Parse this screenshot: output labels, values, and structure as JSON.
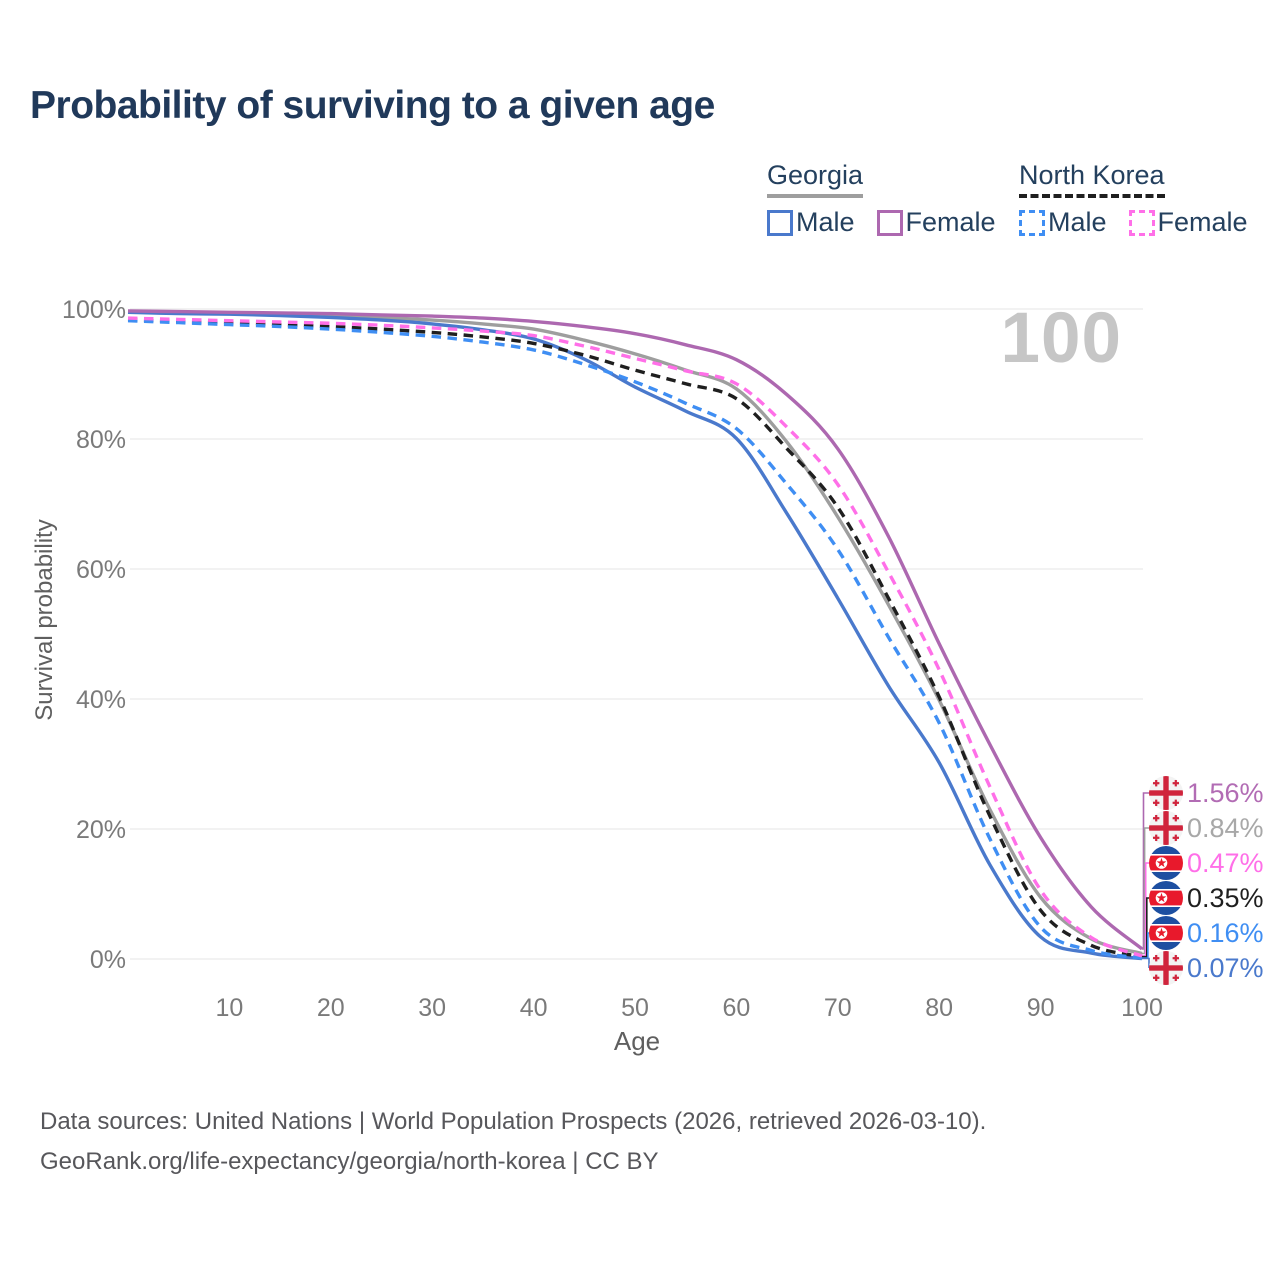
{
  "title": "Probability of surviving to a given age",
  "watermark": "100",
  "legend": {
    "groups": [
      {
        "label": "Georgia",
        "line_color": "#9e9e9e",
        "line_style": "solid",
        "items": [
          {
            "label": "Male",
            "color": "#4a79cc",
            "style": "solid"
          },
          {
            "label": "Female",
            "color": "#ad68b0",
            "style": "solid"
          }
        ]
      },
      {
        "label": "North Korea",
        "line_color": "#1f1f1f",
        "line_style": "dashed",
        "items": [
          {
            "label": "Male",
            "color": "#3f8ef3",
            "style": "dashed"
          },
          {
            "label": "Female",
            "color": "#ff6fe8",
            "style": "dashed"
          }
        ]
      }
    ]
  },
  "y_axis": {
    "title": "Survival probability",
    "ticks": [
      "0%",
      "20%",
      "40%",
      "60%",
      "80%",
      "100%"
    ],
    "values": [
      0,
      20,
      40,
      60,
      80,
      100
    ]
  },
  "x_axis": {
    "title": "Age",
    "ticks": [
      "10",
      "20",
      "30",
      "40",
      "50",
      "60",
      "70",
      "80",
      "90",
      "100"
    ],
    "values": [
      10,
      20,
      30,
      40,
      50,
      60,
      70,
      80,
      90,
      100
    ]
  },
  "end_labels": [
    {
      "flag": "georgia",
      "value": "1.56%",
      "color": "#b26cb4",
      "series": "Georgia Female"
    },
    {
      "flag": "georgia",
      "value": "0.84%",
      "color": "#a8a8a8",
      "series": "Georgia"
    },
    {
      "flag": "north-korea",
      "value": "0.47%",
      "color": "#ff6fe8",
      "series": "North Korea Female"
    },
    {
      "flag": "north-korea",
      "value": "0.35%",
      "color": "#1f1f1f",
      "series": "North Korea"
    },
    {
      "flag": "north-korea",
      "value": "0.16%",
      "color": "#3f8ef3",
      "series": "North Korea Male"
    },
    {
      "flag": "georgia",
      "value": "0.07%",
      "color": "#4a79cc",
      "series": "Georgia Male"
    }
  ],
  "footer": {
    "line1": "Data sources: United Nations | World Population Prospects (2026, retrieved 2026-03-10).",
    "line2": "GeoRank.org/life-expectancy/georgia/north-korea | CC BY"
  },
  "chart_data": {
    "type": "line",
    "title": "Probability of surviving to a given age",
    "xlabel": "Age",
    "ylabel": "Survival probability",
    "xlim": [
      0,
      100
    ],
    "ylim": [
      0,
      100
    ],
    "grid": "horizontal",
    "hovered_age": 100,
    "x": [
      0,
      5,
      10,
      15,
      20,
      25,
      30,
      35,
      40,
      45,
      50,
      55,
      60,
      65,
      70,
      75,
      80,
      85,
      90,
      95,
      100
    ],
    "series": [
      {
        "name": "Georgia Female",
        "color": "#ad68b0",
        "dash": "solid",
        "end_label": "1.56%",
        "values": [
          99.7,
          99.6,
          99.5,
          99.4,
          99.3,
          99.1,
          98.9,
          98.6,
          98.1,
          97.3,
          96.2,
          94.5,
          92.2,
          86.8,
          78.5,
          65.0,
          48.5,
          33.0,
          18.7,
          8.0,
          1.56
        ]
      },
      {
        "name": "Georgia",
        "color": "#9e9e9e",
        "dash": "solid",
        "end_label": "0.84%",
        "values": [
          99.6,
          99.5,
          99.4,
          99.2,
          99.0,
          98.7,
          98.3,
          97.7,
          96.9,
          95.2,
          93.1,
          90.6,
          87.7,
          79.5,
          68.0,
          54.5,
          39.8,
          23.0,
          9.5,
          3.1,
          0.84
        ]
      },
      {
        "name": "North Korea Female",
        "color": "#ff6fe8",
        "dash": "dashed",
        "end_label": "0.47%",
        "values": [
          98.6,
          98.4,
          98.2,
          98.0,
          97.8,
          97.5,
          97.1,
          96.6,
          95.9,
          94.3,
          92.4,
          90.5,
          88.5,
          81.8,
          73.0,
          59.5,
          44.5,
          26.5,
          10.6,
          3.3,
          0.47
        ]
      },
      {
        "name": "North Korea",
        "color": "#1f1f1f",
        "dash": "dashed",
        "end_label": "0.35%",
        "values": [
          98.4,
          98.1,
          97.9,
          97.6,
          97.3,
          96.9,
          96.4,
          95.7,
          94.7,
          92.9,
          90.6,
          88.5,
          86.2,
          78.5,
          69.5,
          55.5,
          40.3,
          22.0,
          7.5,
          2.1,
          0.35
        ]
      },
      {
        "name": "North Korea Male",
        "color": "#3f8ef3",
        "dash": "dashed",
        "end_label": "0.16%",
        "values": [
          98.2,
          97.9,
          97.6,
          97.3,
          96.9,
          96.4,
          95.8,
          94.9,
          93.7,
          91.5,
          88.8,
          85.5,
          81.6,
          73.0,
          63.0,
          49.5,
          36.3,
          18.5,
          4.9,
          1.3,
          0.16
        ]
      },
      {
        "name": "Georgia Male",
        "color": "#4a79cc",
        "dash": "solid",
        "end_label": "0.07%",
        "values": [
          99.5,
          99.3,
          99.2,
          99.0,
          98.7,
          98.3,
          97.7,
          96.8,
          95.4,
          92.3,
          88.0,
          84.3,
          80.1,
          68.5,
          55.5,
          42.0,
          30.2,
          14.5,
          3.4,
          0.9,
          0.07
        ]
      }
    ]
  }
}
